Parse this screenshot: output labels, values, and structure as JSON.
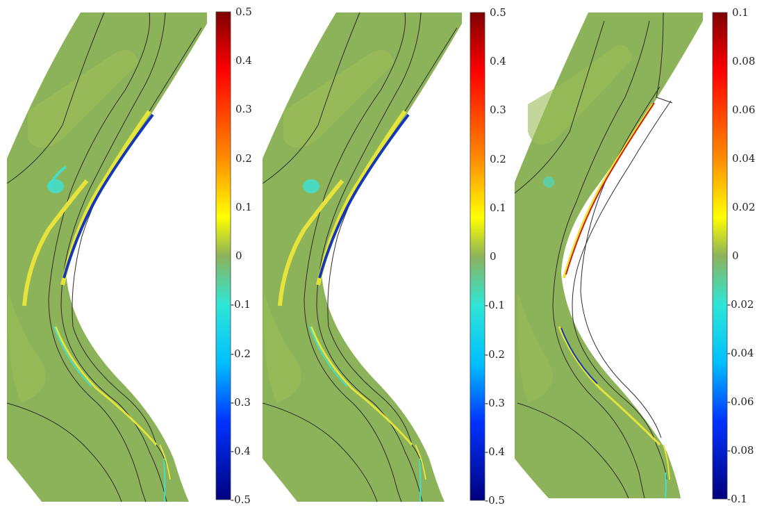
{
  "figure": {
    "panels": [
      {
        "id": "left",
        "colorbar": {
          "min": -0.5,
          "max": 0.5,
          "ticks": [
            "0.5",
            "0.4",
            "0.3",
            "0.2",
            "0.1",
            "0",
            "-0.1",
            "-0.2",
            "-0.3",
            "-0.4",
            "-0.5"
          ]
        }
      },
      {
        "id": "middle",
        "colorbar": {
          "min": -0.5,
          "max": 0.5,
          "ticks": [
            "0.5",
            "0.4",
            "0.3",
            "0.2",
            "0.1",
            "0",
            "-0.1",
            "-0.2",
            "-0.3",
            "-0.4",
            "-0.5"
          ]
        }
      },
      {
        "id": "right",
        "colorbar": {
          "min": -0.1,
          "max": 0.1,
          "ticks": [
            "0.1",
            "0.08",
            "0.06",
            "0.04",
            "0.02",
            "0",
            "-0.02",
            "-0.04",
            "-0.06",
            "-0.08",
            "-0.1"
          ]
        }
      }
    ],
    "colors": {
      "field_background": "#8db35a",
      "field_light_patch": "#9cbc56",
      "field_yellow_band": "#e6e33a",
      "field_cyan_band": "#3fe0d2",
      "field_blue_band": "#1438b8",
      "field_red_band": "#d41a0a",
      "contour_line": "#2a2a2a",
      "jet": [
        "#00007f",
        "#0000ff",
        "#007fff",
        "#00ffff",
        "#7fff7f",
        "#ffff00",
        "#ff7f00",
        "#ff0000",
        "#7f0000"
      ]
    }
  }
}
